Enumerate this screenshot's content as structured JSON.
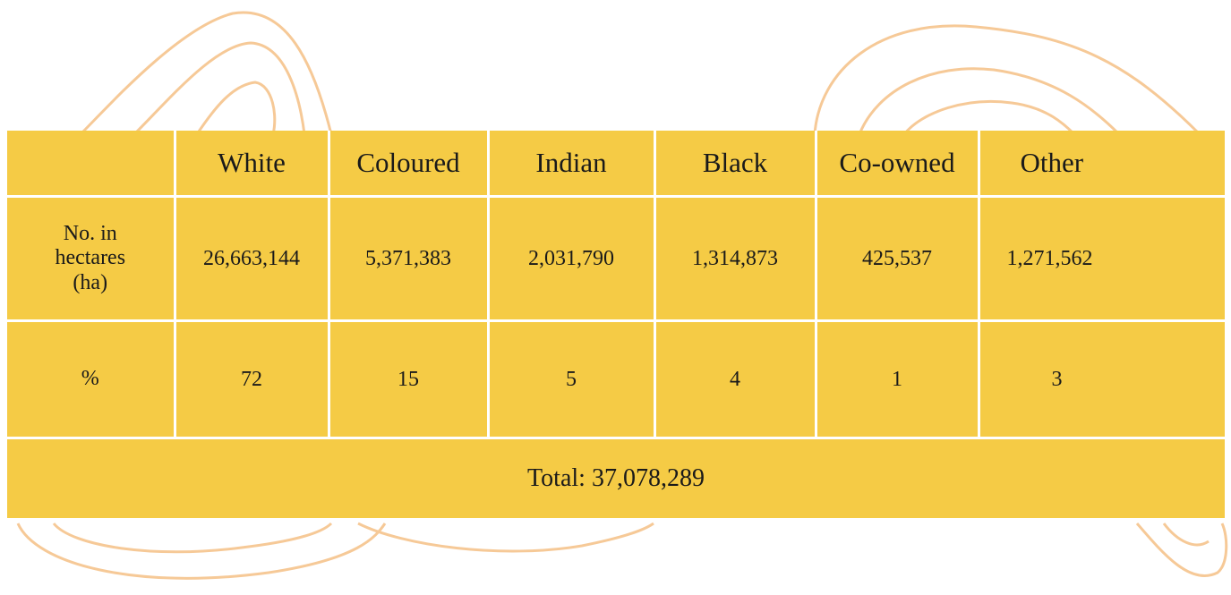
{
  "table": {
    "columns": [
      "White",
      "Coloured",
      "Indian",
      "Black",
      "Co-owned",
      "Other"
    ],
    "rows": [
      {
        "label": "No. in hectares (ha)",
        "cells": [
          "26,663,144",
          "5,371,383",
          "2,031,790",
          "1,314,873",
          "425,537",
          "1,271,562"
        ]
      },
      {
        "label": "%",
        "cells": [
          "72",
          "15",
          "5",
          "4",
          "1",
          "3"
        ]
      }
    ],
    "total": "Total: 37,078,289"
  }
}
